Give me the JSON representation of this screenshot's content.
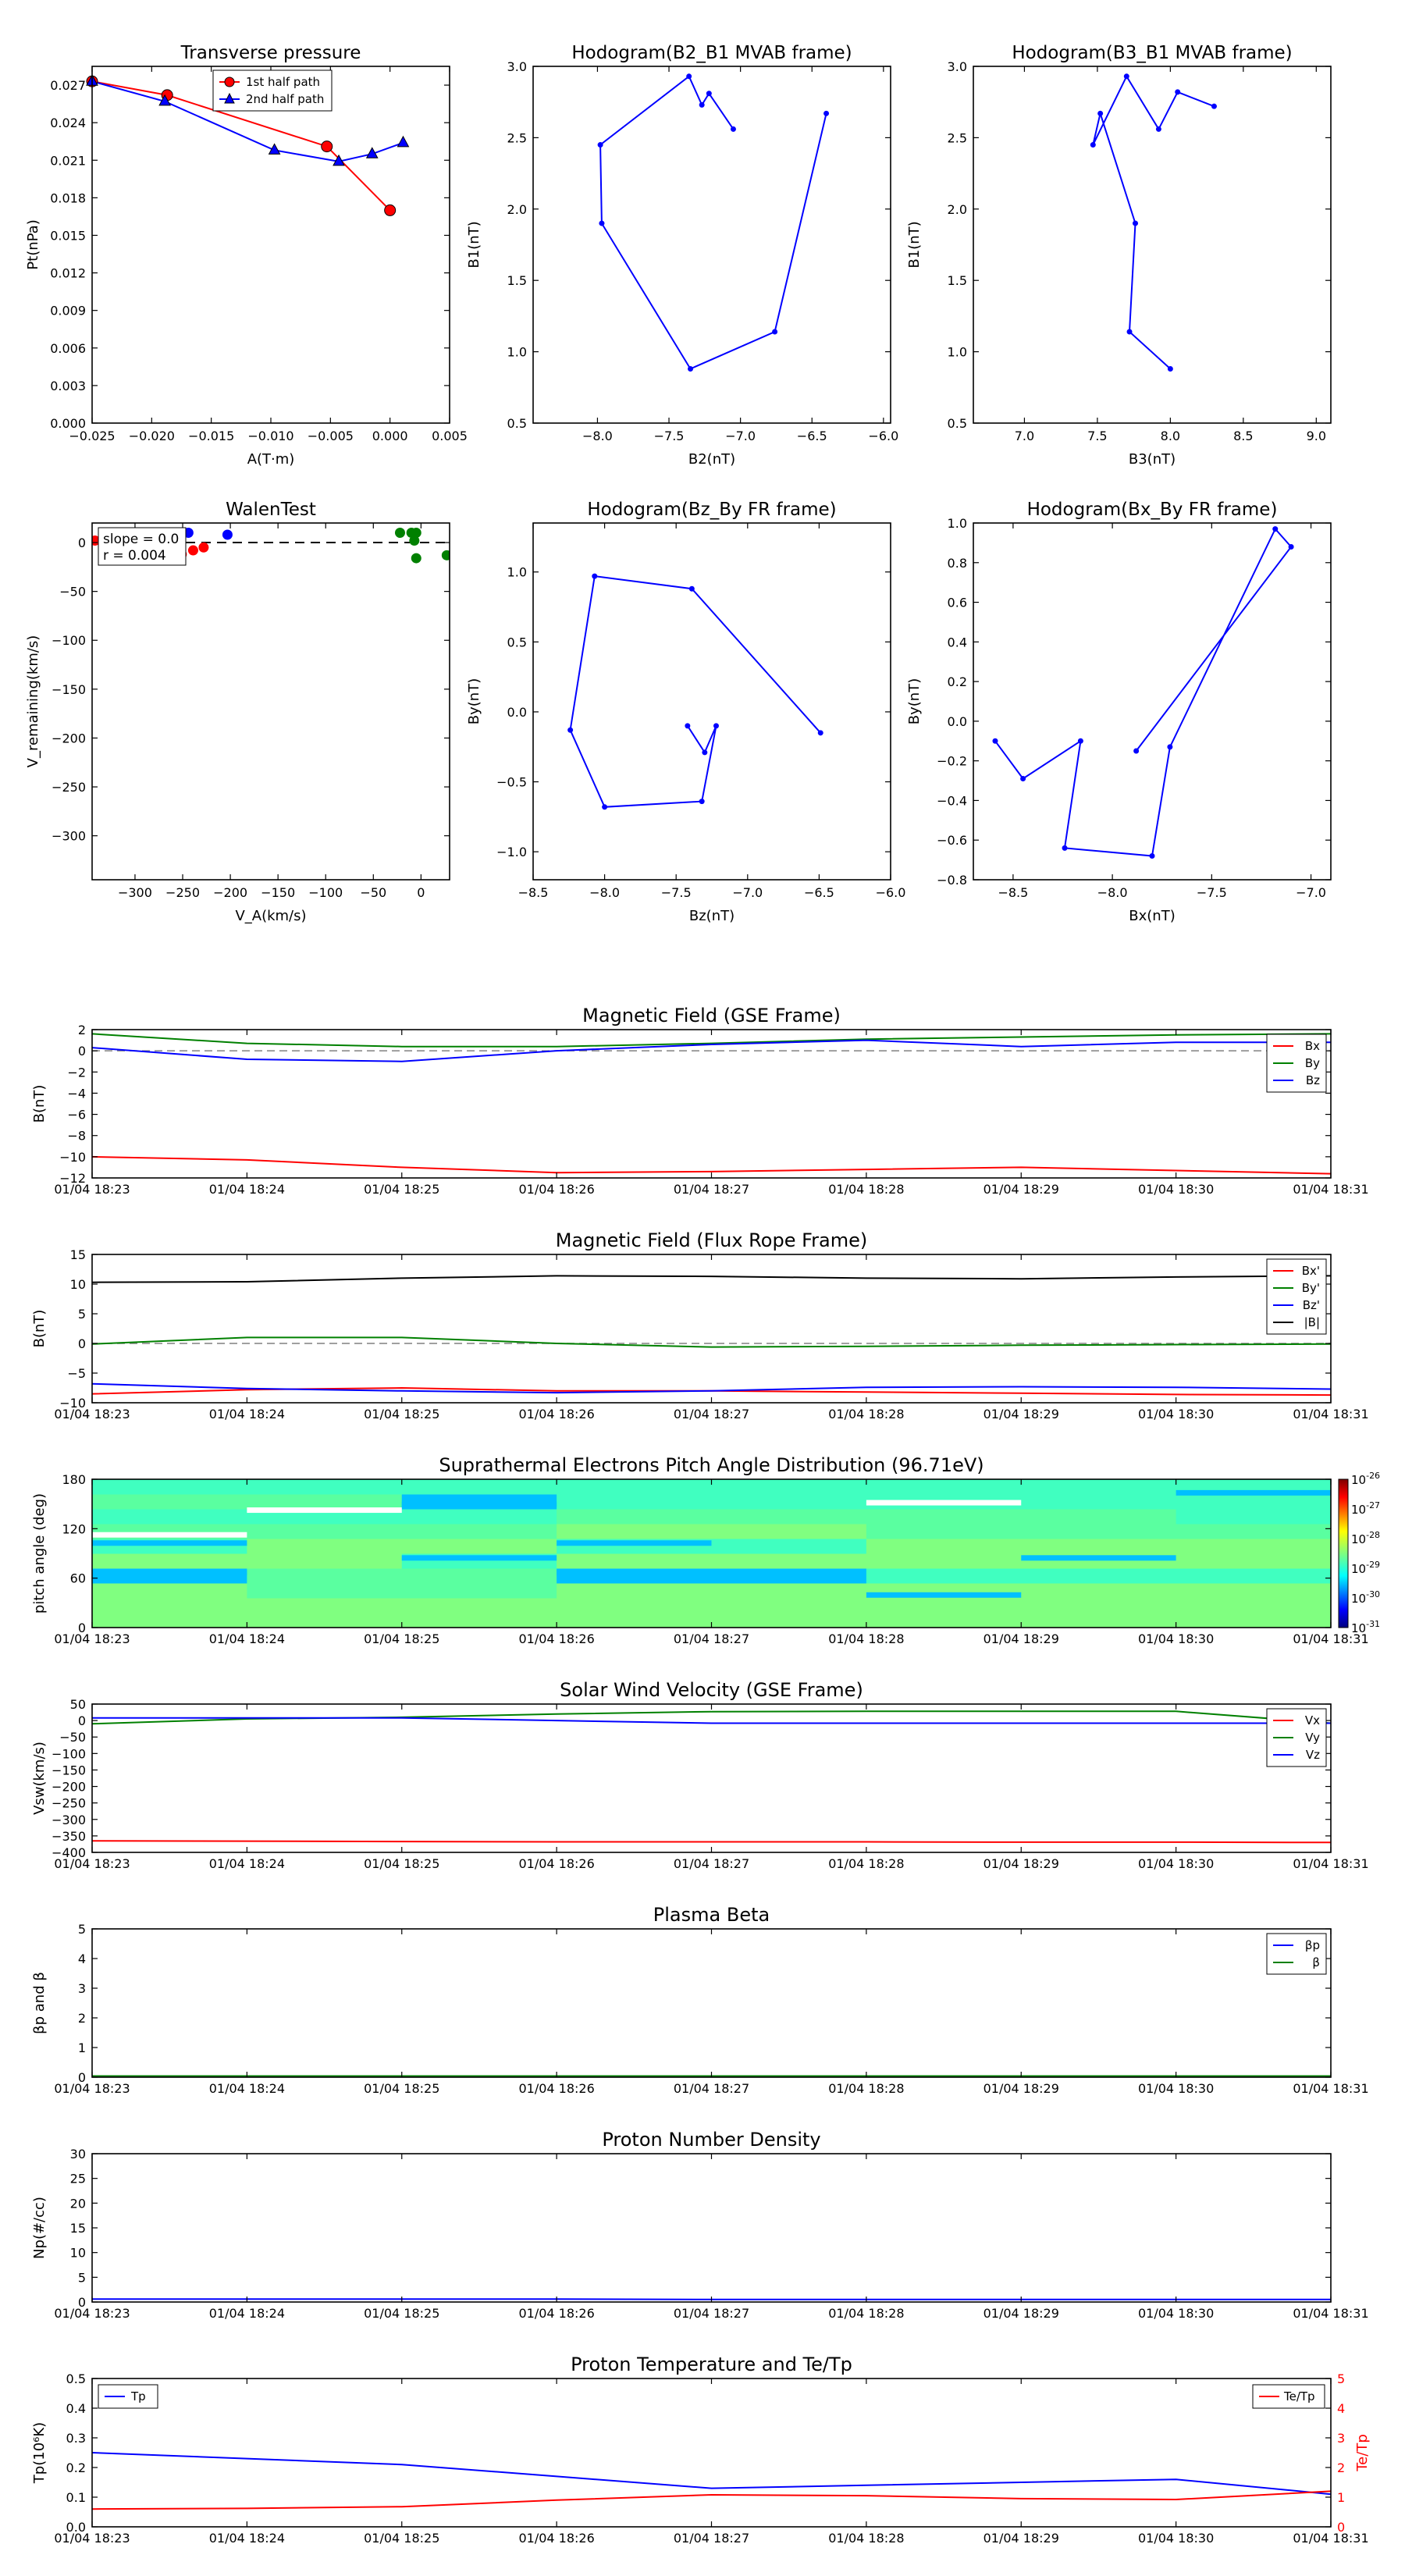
{
  "colors": {
    "red": "#ff0000",
    "green": "#008000",
    "blue": "#0000ff",
    "black": "#000000",
    "gray": "#808080"
  },
  "chart_data": [
    {
      "id": "tp",
      "type": "line",
      "title": "Transverse pressure",
      "xlabel": "A(T·m)",
      "ylabel": "Pt(nPa)",
      "xlim": [
        -0.025,
        0.005
      ],
      "ylim": [
        0,
        0.0285
      ],
      "xticks": [
        -0.025,
        -0.02,
        -0.015,
        -0.01,
        -0.005,
        0,
        0.005
      ],
      "xtick_labels": [
        "−0.025",
        "−0.020",
        "−0.015",
        "−0.010",
        "−0.005",
        "0.000",
        "0.005"
      ],
      "yticks": [
        0,
        0.003,
        0.006,
        0.009,
        0.012,
        0.015,
        0.018,
        0.021,
        0.024,
        0.027
      ],
      "ytick_labels": [
        "0.000",
        "0.003",
        "0.006",
        "0.009",
        "0.012",
        "0.015",
        "0.018",
        "0.021",
        "0.024",
        "0.027"
      ],
      "legend": "top-center",
      "series": [
        {
          "name": "1st half path",
          "color": "red",
          "marker": "circle",
          "x": [
            -0.025,
            -0.0187,
            -0.0053,
            0.0
          ],
          "y": [
            0.0273,
            0.0262,
            0.0221,
            0.017
          ]
        },
        {
          "name": "2nd half path",
          "color": "blue",
          "marker": "triangle",
          "x": [
            -0.025,
            -0.0189,
            -0.0097,
            -0.0043,
            -0.0015,
            0.0011
          ],
          "y": [
            0.0273,
            0.0257,
            0.0218,
            0.0209,
            0.0215,
            0.0224
          ]
        }
      ]
    },
    {
      "id": "h21",
      "type": "line",
      "title": "Hodogram(B2_B1 MVAB frame)",
      "xlabel": "B2(nT)",
      "ylabel": "B1(nT)",
      "xlim": [
        -8.45,
        -5.95
      ],
      "ylim": [
        0.5,
        3.0
      ],
      "xticks": [
        -8.0,
        -7.5,
        -7.0,
        -6.5,
        -6.0
      ],
      "xtick_labels": [
        "−8.0",
        "−7.5",
        "−7.0",
        "−6.5",
        "−6.0"
      ],
      "yticks": [
        0.5,
        1.0,
        1.5,
        2.0,
        2.5,
        3.0
      ],
      "ytick_labels": [
        "0.5",
        "1.0",
        "1.5",
        "2.0",
        "2.5",
        "3.0"
      ],
      "series": [
        {
          "color": "blue",
          "marker": "dot",
          "x": [
            -7.05,
            -7.22,
            -7.27,
            -7.36,
            -7.98,
            -7.97,
            -7.35,
            -6.76,
            -6.4
          ],
          "y": [
            2.56,
            2.81,
            2.73,
            2.93,
            2.45,
            1.9,
            0.88,
            1.14,
            2.67
          ]
        }
      ]
    },
    {
      "id": "h31",
      "type": "line",
      "title": "Hodogram(B3_B1 MVAB frame)",
      "xlabel": "B3(nT)",
      "ylabel": "B1(nT)",
      "xlim": [
        6.65,
        9.1
      ],
      "ylim": [
        0.5,
        3.0
      ],
      "xticks": [
        7.0,
        7.5,
        8.0,
        8.5,
        9.0
      ],
      "xtick_labels": [
        "7.0",
        "7.5",
        "8.0",
        "8.5",
        "9.0"
      ],
      "yticks": [
        0.5,
        1.0,
        1.5,
        2.0,
        2.5,
        3.0
      ],
      "ytick_labels": [
        "0.5",
        "1.0",
        "1.5",
        "2.0",
        "2.5",
        "3.0"
      ],
      "series": [
        {
          "color": "blue",
          "marker": "dot",
          "x": [
            8.3,
            8.05,
            7.92,
            7.7,
            7.47,
            7.52,
            7.76,
            7.72,
            8.0
          ],
          "y": [
            2.72,
            2.82,
            2.56,
            2.93,
            2.45,
            2.67,
            1.9,
            1.14,
            0.88
          ]
        }
      ]
    },
    {
      "id": "walen",
      "type": "scatter",
      "title": "WalenTest",
      "xlabel": "V_A(km/s)",
      "ylabel": "V_remaining(km/s)",
      "xlim": [
        -345,
        30
      ],
      "ylim": [
        -345,
        20
      ],
      "xticks": [
        -300,
        -250,
        -200,
        -150,
        -100,
        -50,
        0
      ],
      "xtick_labels": [
        "−300",
        "−250",
        "−200",
        "−150",
        "−100",
        "−50",
        "0"
      ],
      "yticks": [
        -300,
        -250,
        -200,
        -150,
        -100,
        -50,
        0
      ],
      "ytick_labels": [
        "−300",
        "−250",
        "−200",
        "−150",
        "−100",
        "−50",
        "0"
      ],
      "annotation_lines": [
        "slope = 0.0",
        "r = 0.004"
      ],
      "series": [
        {
          "color": "red",
          "x": [
            -342,
            -318,
            -305,
            -262,
            -251,
            -239,
            -228
          ],
          "y": [
            2,
            -18,
            -18,
            -17,
            -12,
            -8,
            -5
          ]
        },
        {
          "color": "blue",
          "x": [
            -244,
            -203
          ],
          "y": [
            10,
            8
          ]
        },
        {
          "color": "green",
          "x": [
            -22,
            -10,
            -5,
            -7,
            -5,
            27
          ],
          "y": [
            10,
            10,
            10,
            2,
            -16,
            -13
          ]
        }
      ]
    },
    {
      "id": "hzy",
      "type": "line",
      "title": "Hodogram(Bz_By FR frame)",
      "xlabel": "Bz(nT)",
      "ylabel": "By(nT)",
      "xlim": [
        -8.5,
        -6.0
      ],
      "ylim": [
        -1.2,
        1.35
      ],
      "xticks": [
        -8.5,
        -8.0,
        -7.5,
        -7.0,
        -6.5,
        -6.0
      ],
      "xtick_labels": [
        "−8.5",
        "−8.0",
        "−7.5",
        "−7.0",
        "−6.5",
        "−6.0"
      ],
      "yticks": [
        -1.0,
        -0.5,
        0.0,
        0.5,
        1.0
      ],
      "ytick_labels": [
        "−1.0",
        "−0.5",
        "0.0",
        "0.5",
        "1.0"
      ],
      "series": [
        {
          "color": "blue",
          "marker": "dot",
          "x": [
            -7.42,
            -7.3,
            -7.22,
            -7.32,
            -8.0,
            -8.24,
            -8.07,
            -7.39,
            -6.49
          ],
          "y": [
            -0.1,
            -0.29,
            -0.1,
            -0.64,
            -0.68,
            -0.13,
            0.97,
            0.88,
            -0.15
          ]
        }
      ]
    },
    {
      "id": "hxy",
      "type": "line",
      "title": "Hodogram(Bx_By FR frame)",
      "xlabel": "Bx(nT)",
      "ylabel": "By(nT)",
      "xlim": [
        -8.7,
        -6.9
      ],
      "ylim": [
        -0.8,
        1.0
      ],
      "xticks": [
        -8.5,
        -8.0,
        -7.5,
        -7.0
      ],
      "xtick_labels": [
        "−8.5",
        "−8.0",
        "−7.5",
        "−7.0"
      ],
      "yticks": [
        -0.8,
        -0.6,
        -0.4,
        -0.2,
        0.0,
        0.2,
        0.4,
        0.6,
        0.8,
        1.0
      ],
      "ytick_labels": [
        "−0.8",
        "−0.6",
        "−0.4",
        "−0.2",
        "0.0",
        "0.2",
        "0.4",
        "0.6",
        "0.8",
        "1.0"
      ],
      "series": [
        {
          "color": "blue",
          "marker": "dot",
          "x": [
            -8.59,
            -8.45,
            -8.16,
            -8.24,
            -7.8,
            -7.71,
            -7.18,
            -7.1,
            -7.88
          ],
          "y": [
            -0.1,
            -0.29,
            -0.1,
            -0.64,
            -0.68,
            -0.13,
            0.97,
            0.88,
            -0.15
          ]
        }
      ]
    },
    {
      "id": "mag_gse",
      "type": "line",
      "title": "Magnetic Field (GSE Frame)",
      "ylabel": "B(nT)",
      "xlim": [
        0,
        8
      ],
      "ylim": [
        -12,
        2
      ],
      "yticks": [
        -12,
        -10,
        -8,
        -6,
        -4,
        -2,
        0,
        2
      ],
      "ytick_labels": [
        "−12",
        "−10",
        "−8",
        "−6",
        "−4",
        "−2",
        "0",
        "2"
      ],
      "zero_line": true,
      "legend": "top-right",
      "series": [
        {
          "name": "Bx",
          "color": "red",
          "values": [
            -10.0,
            -10.3,
            -11.0,
            -11.5,
            -11.4,
            -11.2,
            -11.0,
            -11.3,
            -11.6
          ]
        },
        {
          "name": "By",
          "color": "green",
          "values": [
            1.6,
            0.7,
            0.4,
            0.4,
            0.7,
            1.1,
            1.3,
            1.5,
            1.6
          ]
        },
        {
          "name": "Bz",
          "color": "blue",
          "values": [
            0.3,
            -0.8,
            -1.0,
            0.0,
            0.6,
            1.0,
            0.4,
            0.8,
            0.8
          ]
        }
      ]
    },
    {
      "id": "mag_fr",
      "type": "line",
      "title": "Magnetic Field (Flux Rope Frame)",
      "ylabel": "B(nT)",
      "xlim": [
        0,
        8
      ],
      "ylim": [
        -10,
        15
      ],
      "yticks": [
        -10,
        -5,
        0,
        5,
        10,
        15
      ],
      "ytick_labels": [
        "−10",
        "−5",
        "0",
        "5",
        "10",
        "15"
      ],
      "zero_line": true,
      "legend": "top-right",
      "series": [
        {
          "name": "Bx'",
          "color": "red",
          "values": [
            -8.5,
            -7.8,
            -7.5,
            -8.0,
            -8.0,
            -8.2,
            -8.4,
            -8.6,
            -8.7
          ]
        },
        {
          "name": "By'",
          "color": "green",
          "values": [
            -0.1,
            1.0,
            1.0,
            0.0,
            -0.6,
            -0.5,
            -0.3,
            -0.2,
            -0.1
          ]
        },
        {
          "name": "Bz'",
          "color": "blue",
          "values": [
            -6.8,
            -7.6,
            -8.0,
            -8.3,
            -8.0,
            -7.4,
            -7.3,
            -7.4,
            -7.7
          ]
        },
        {
          "name": "|B|",
          "color": "black",
          "values": [
            10.3,
            10.4,
            11.0,
            11.4,
            11.3,
            11.0,
            10.9,
            11.2,
            11.4
          ]
        }
      ]
    },
    {
      "id": "pad",
      "type": "heatmap",
      "title": "Suprathermal Electrons Pitch Angle Distribution (96.71eV)",
      "ylabel": "pitch angle (deg)",
      "xlim": [
        0,
        8
      ],
      "ylim": [
        0,
        180
      ],
      "yticks": [
        0,
        60,
        120,
        180
      ],
      "ytick_labels": [
        "0",
        "60",
        "120",
        "180"
      ],
      "bins": [
        0,
        18,
        36,
        54,
        72,
        90,
        108,
        126,
        144,
        162,
        180
      ],
      "colorbar": {
        "exponents": [
          -26,
          -27,
          -28,
          -29,
          -30,
          -31
        ],
        "base": "10"
      },
      "cells": [
        [
          "lg",
          "lg",
          "lg",
          "lg",
          "lg",
          "lg",
          "lg",
          "lg"
        ],
        [
          "lg",
          "lg",
          "lg",
          "lg",
          "lg",
          "lg",
          "lg",
          "lg"
        ],
        [
          "lg",
          "mg",
          "mg",
          "lg",
          "lg",
          "lg",
          "lg",
          "lg"
        ],
        [
          "cy",
          "mg",
          "mg",
          "cy",
          "cy",
          "tq",
          "tq",
          "tq"
        ],
        [
          "lg",
          "lg",
          "tq",
          "lg",
          "lg",
          "lg",
          "lg",
          "lg"
        ],
        [
          "tq",
          "lg",
          "lg",
          "tq",
          "tq",
          "lg",
          "lg",
          "lg"
        ],
        [
          "mg",
          "mg",
          "mg",
          "lg",
          "lg",
          "mg",
          "mg",
          "mg"
        ],
        [
          "tq",
          "tq",
          "tq",
          "mg",
          "mg",
          "mg",
          "mg",
          "tq"
        ],
        [
          "mg",
          "mg",
          "cy",
          "tq",
          "tq",
          "tq",
          "tq",
          "tq"
        ],
        [
          "tq",
          "tq",
          "tq",
          "tq",
          "tq",
          "tq",
          "tq",
          "tq"
        ]
      ],
      "palette": {
        "lg": "#80ff80",
        "mg": "#5affa0",
        "tq": "#40ffc0",
        "cy": "#00c0ff",
        "wh": "#ffffff"
      },
      "highlights": [
        {
          "t": 0,
          "v": 67,
          "color": "cy"
        },
        {
          "t": 0,
          "v": 103,
          "color": "cy"
        },
        {
          "t": 0,
          "v": 113,
          "color": "wh"
        },
        {
          "t": 1,
          "v": 143,
          "color": "wh"
        },
        {
          "t": 2,
          "v": 150,
          "color": "cy"
        },
        {
          "t": 2,
          "v": 85,
          "color": "cy"
        },
        {
          "t": 3,
          "v": 67,
          "color": "cy"
        },
        {
          "t": 3,
          "v": 103,
          "color": "cy"
        },
        {
          "t": 5,
          "v": 40,
          "color": "cy"
        },
        {
          "t": 5,
          "v": 152,
          "color": "wh"
        },
        {
          "t": 6,
          "v": 85,
          "color": "cy"
        },
        {
          "t": 7,
          "v": 164,
          "color": "cy"
        }
      ]
    },
    {
      "id": "vsw",
      "type": "line",
      "title": "Solar Wind Velocity (GSE Frame)",
      "ylabel": "Vsw(km/s)",
      "xlim": [
        0,
        8
      ],
      "ylim": [
        -400,
        50
      ],
      "yticks": [
        -400,
        -350,
        -300,
        -250,
        -200,
        -150,
        -100,
        -50,
        0,
        50
      ],
      "ytick_labels": [
        "−400",
        "−350",
        "−300",
        "−250",
        "−200",
        "−150",
        "−100",
        "−50",
        "0",
        "50"
      ],
      "legend": "top-right",
      "series": [
        {
          "name": "Vx",
          "color": "red",
          "values": [
            -365,
            -366,
            -367,
            -368,
            -368,
            -368,
            -369,
            -369,
            -370
          ]
        },
        {
          "name": "Vy",
          "color": "green",
          "values": [
            -10,
            5,
            10,
            20,
            27,
            28,
            28,
            28,
            -8
          ]
        },
        {
          "name": "Vz",
          "color": "blue",
          "values": [
            8,
            8,
            8,
            0,
            -8,
            -8,
            -8,
            -8,
            -8
          ]
        }
      ]
    },
    {
      "id": "beta",
      "type": "line",
      "title": "Plasma Beta",
      "ylabel": "βp and β",
      "xlim": [
        0,
        8
      ],
      "ylim": [
        0,
        5
      ],
      "yticks": [
        0,
        1,
        2,
        3,
        4,
        5
      ],
      "ytick_labels": [
        "0",
        "1",
        "2",
        "3",
        "4",
        "5"
      ],
      "legend": "top-right",
      "series": [
        {
          "name": "βp",
          "color": "blue",
          "values": [
            0.01,
            0.01,
            0.01,
            0.01,
            0.01,
            0.01,
            0.01,
            0.01,
            0.01
          ]
        },
        {
          "name": "β",
          "color": "green",
          "values": [
            0.04,
            0.04,
            0.04,
            0.04,
            0.04,
            0.04,
            0.04,
            0.04,
            0.04
          ]
        }
      ]
    },
    {
      "id": "np",
      "type": "line",
      "title": "Proton Number Density",
      "ylabel": "Np(#/cc)",
      "xlim": [
        0,
        8
      ],
      "ylim": [
        0,
        30
      ],
      "yticks": [
        0,
        5,
        10,
        15,
        20,
        25,
        30
      ],
      "ytick_labels": [
        "0",
        "5",
        "10",
        "15",
        "20",
        "25",
        "30"
      ],
      "series": [
        {
          "color": "blue",
          "values": [
            0.6,
            0.6,
            0.6,
            0.6,
            0.5,
            0.5,
            0.5,
            0.5,
            0.5
          ]
        }
      ]
    },
    {
      "id": "tp_temp",
      "type": "line",
      "title": "Proton Temperature and Te/Tp",
      "ylabel": "Tp(10⁶K)",
      "y2label": "Te/Tp",
      "xlim": [
        0,
        8
      ],
      "ylim": [
        0,
        0.5
      ],
      "y2lim": [
        0,
        5
      ],
      "yticks": [
        0,
        0.1,
        0.2,
        0.3,
        0.4,
        0.5
      ],
      "ytick_labels": [
        "0.0",
        "0.1",
        "0.2",
        "0.3",
        "0.4",
        "0.5"
      ],
      "y2ticks": [
        0,
        1,
        2,
        3,
        4,
        5
      ],
      "y2tick_labels": [
        "0",
        "1",
        "2",
        "3",
        "4",
        "5"
      ],
      "series": [
        {
          "name": "Tp",
          "color": "blue",
          "axis": "left",
          "values": [
            0.25,
            0.23,
            0.21,
            0.17,
            0.13,
            0.14,
            0.15,
            0.16,
            0.11
          ]
        },
        {
          "name": "Te/Tp",
          "color": "red",
          "axis": "right",
          "values": [
            0.6,
            0.62,
            0.68,
            0.9,
            1.08,
            1.05,
            0.95,
            0.92,
            1.2
          ]
        }
      ]
    }
  ],
  "time_ticks": [
    "01/04 18:23",
    "01/04 18:24",
    "01/04 18:25",
    "01/04 18:26",
    "01/04 18:27",
    "01/04 18:28",
    "01/04 18:29",
    "01/04 18:30",
    "01/04 18:31"
  ]
}
